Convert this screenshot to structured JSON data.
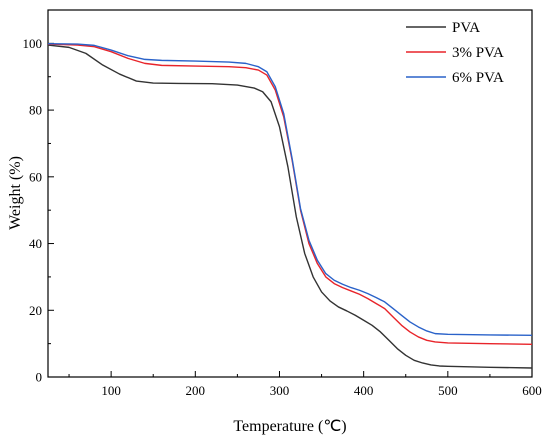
{
  "chart_data": {
    "type": "line",
    "title": "",
    "xlabel": "Temperature (℃)",
    "ylabel": "Weight (%)",
    "xlim": [
      25,
      600
    ],
    "ylim": [
      0,
      110
    ],
    "xticks": [
      100,
      200,
      300,
      400,
      500,
      600
    ],
    "yticks": [
      0,
      20,
      40,
      60,
      80,
      100
    ],
    "xtick_labels": [
      "100",
      "200",
      "300",
      "400",
      "500",
      "600"
    ],
    "ytick_labels": [
      "0",
      "20",
      "40",
      "60",
      "80",
      "100"
    ],
    "grid": false,
    "legend_position": "top-right",
    "series": [
      {
        "name": "PVA",
        "color": "#333333",
        "points": [
          [
            25,
            99.5
          ],
          [
            50,
            98.8
          ],
          [
            70,
            97
          ],
          [
            90,
            93.5
          ],
          [
            110,
            90.8
          ],
          [
            130,
            88.7
          ],
          [
            150,
            88.1
          ],
          [
            180,
            88
          ],
          [
            220,
            87.9
          ],
          [
            250,
            87.5
          ],
          [
            270,
            86.6
          ],
          [
            280,
            85.5
          ],
          [
            290,
            82.5
          ],
          [
            300,
            75
          ],
          [
            310,
            63
          ],
          [
            320,
            48
          ],
          [
            330,
            37
          ],
          [
            340,
            30
          ],
          [
            350,
            25.5
          ],
          [
            360,
            22.8
          ],
          [
            370,
            21
          ],
          [
            380,
            19.8
          ],
          [
            390,
            18.5
          ],
          [
            400,
            17
          ],
          [
            410,
            15.5
          ],
          [
            420,
            13.5
          ],
          [
            430,
            11
          ],
          [
            440,
            8.5
          ],
          [
            450,
            6.5
          ],
          [
            460,
            5
          ],
          [
            470,
            4.2
          ],
          [
            480,
            3.6
          ],
          [
            490,
            3.3
          ],
          [
            500,
            3.2
          ],
          [
            550,
            2.9
          ],
          [
            600,
            2.7
          ]
        ]
      },
      {
        "name": "3% PVA",
        "color": "#e8242a",
        "points": [
          [
            25,
            99.8
          ],
          [
            60,
            99.5
          ],
          [
            80,
            99
          ],
          [
            100,
            97.5
          ],
          [
            120,
            95.5
          ],
          [
            140,
            94
          ],
          [
            160,
            93.4
          ],
          [
            200,
            93.2
          ],
          [
            240,
            93
          ],
          [
            260,
            92.7
          ],
          [
            275,
            92
          ],
          [
            285,
            90.5
          ],
          [
            295,
            86
          ],
          [
            305,
            78
          ],
          [
            315,
            65
          ],
          [
            325,
            50
          ],
          [
            335,
            40
          ],
          [
            345,
            34
          ],
          [
            355,
            30
          ],
          [
            365,
            28
          ],
          [
            375,
            26.8
          ],
          [
            385,
            25.8
          ],
          [
            395,
            24.8
          ],
          [
            405,
            23.5
          ],
          [
            415,
            22
          ],
          [
            425,
            20.5
          ],
          [
            435,
            18
          ],
          [
            445,
            15.5
          ],
          [
            455,
            13.5
          ],
          [
            465,
            12
          ],
          [
            475,
            11
          ],
          [
            485,
            10.5
          ],
          [
            500,
            10.2
          ],
          [
            550,
            10
          ],
          [
            600,
            9.8
          ]
        ]
      },
      {
        "name": "6% PVA",
        "color": "#2a62c9",
        "points": [
          [
            25,
            99.9
          ],
          [
            60,
            99.8
          ],
          [
            80,
            99.4
          ],
          [
            100,
            98
          ],
          [
            120,
            96.3
          ],
          [
            140,
            95.2
          ],
          [
            160,
            94.9
          ],
          [
            200,
            94.7
          ],
          [
            240,
            94.4
          ],
          [
            260,
            94
          ],
          [
            275,
            93
          ],
          [
            285,
            91.5
          ],
          [
            295,
            87
          ],
          [
            305,
            79
          ],
          [
            315,
            65.5
          ],
          [
            325,
            50.5
          ],
          [
            335,
            41
          ],
          [
            345,
            35
          ],
          [
            355,
            31
          ],
          [
            365,
            29
          ],
          [
            375,
            27.8
          ],
          [
            385,
            26.8
          ],
          [
            395,
            26
          ],
          [
            405,
            25
          ],
          [
            415,
            23.8
          ],
          [
            425,
            22.5
          ],
          [
            435,
            20.5
          ],
          [
            445,
            18.5
          ],
          [
            455,
            16.5
          ],
          [
            465,
            15
          ],
          [
            475,
            13.8
          ],
          [
            485,
            13
          ],
          [
            500,
            12.8
          ],
          [
            550,
            12.6
          ],
          [
            600,
            12.5
          ]
        ]
      }
    ]
  }
}
